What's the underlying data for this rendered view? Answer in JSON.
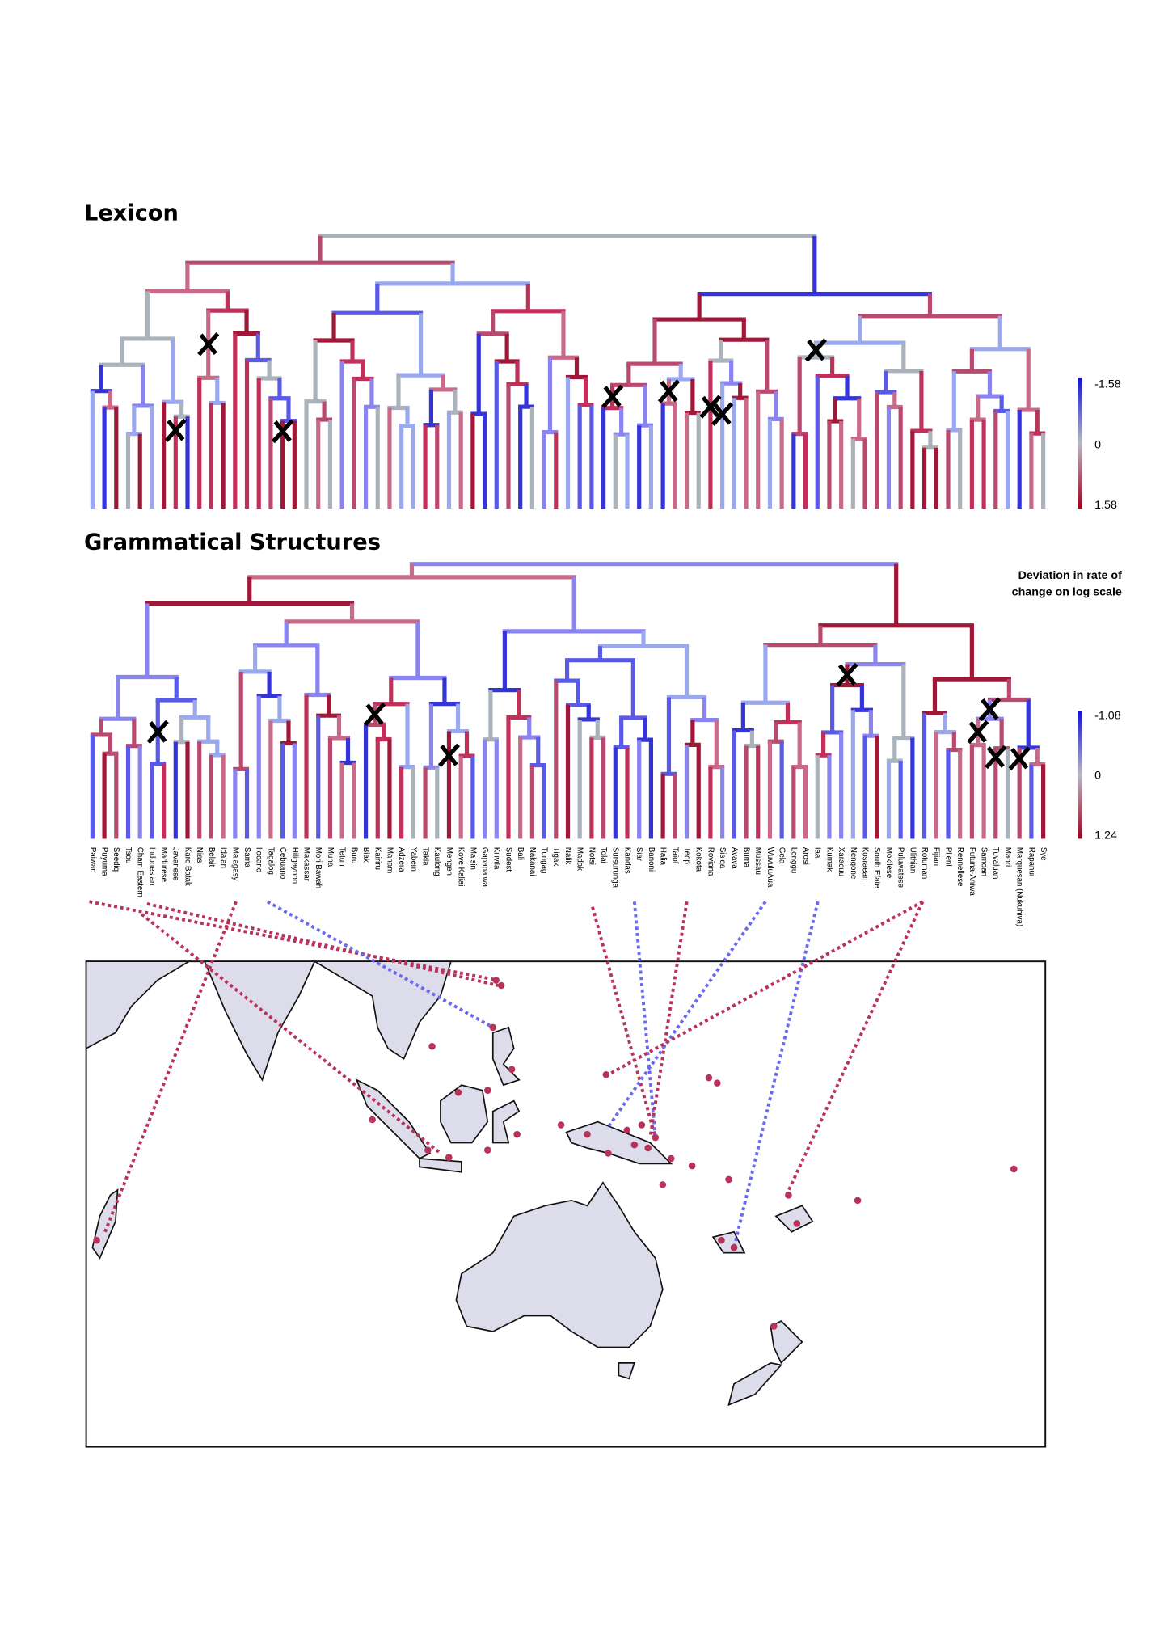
{
  "lexicon": {
    "title": "Lexicon",
    "legend_ticks": [
      -1.58,
      0,
      1.58
    ]
  },
  "grammar": {
    "title": "Grammatical Structures",
    "legend_title": [
      "Deviation in rate of",
      "change on log scale"
    ],
    "legend_ticks": [
      -1.08,
      0,
      1.24
    ]
  },
  "languages": [
    "Paiwan",
    "Puyuma",
    "Seediq",
    "Tsou",
    "Cham Eastern",
    "Indonesian",
    "Madurese",
    "Javanese",
    "Karo Batak",
    "Nias",
    "Belait",
    "Ida'an",
    "Malagasy",
    "Sama",
    "Ilocano",
    "Tagalog",
    "Cebuano",
    "Hiligaynon",
    "Makassar",
    "Mori Bawah",
    "Muna",
    "Tetun",
    "Buru",
    "Biak",
    "Kairiru",
    "Manam",
    "Adzera",
    "Yabem",
    "Takia",
    "Kaulong",
    "Mengen",
    "Kove Kaliai",
    "Maisin",
    "Gapapaiwa",
    "Kilivila",
    "Sudest",
    "Bali",
    "Nakanai",
    "Tungag",
    "Tigak",
    "Nalik",
    "Madak",
    "Notsi",
    "Tolai",
    "Sursurunga",
    "Kandas",
    "Siar",
    "Banoni",
    "Halia",
    "Taiof",
    "Teop",
    "Kokota",
    "Roviana",
    "Sisiqa",
    "Avava",
    "Buma",
    "Mussau",
    "WuvuluAua",
    "Gela",
    "Longgu",
    "Arosi",
    "Iaai",
    "Kumak",
    "Xaracuu",
    "Nengone",
    "Kosraean",
    "South Efate",
    "Mokilese",
    "Puluwatese",
    "Ulithian",
    "Rotuman",
    "Fijian",
    "Pileni",
    "Rennellese",
    "Futuna-Aniwa",
    "Samoan",
    "Tuvaluan",
    "Maori",
    "Marquesan (Nukuhiva)",
    "Rapanui",
    "Sye"
  ]
}
